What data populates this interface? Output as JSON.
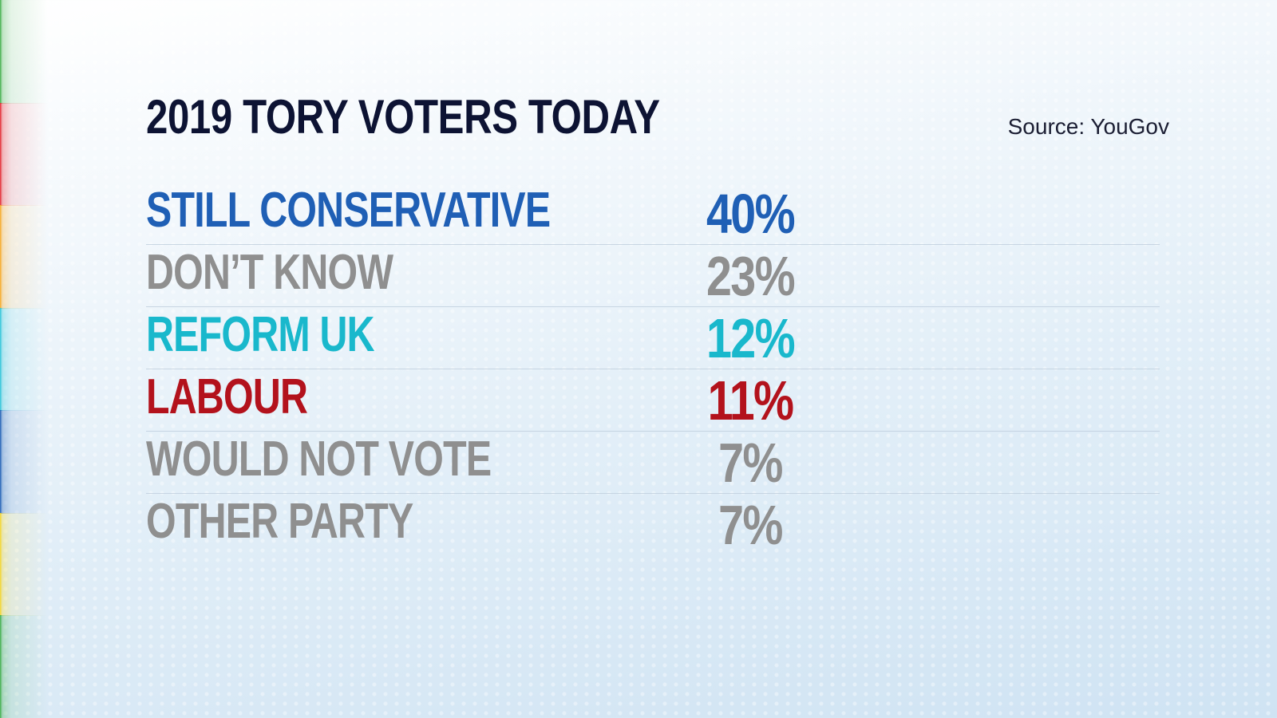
{
  "chart_data": {
    "type": "table",
    "title": "2019 TORY VOTERS TODAY",
    "source": "Source: YouGov",
    "rows": [
      {
        "label": "STILL CONSERVATIVE",
        "value": 40,
        "display": "40%",
        "color": "#1f5fb5"
      },
      {
        "label": "DON’T KNOW",
        "value": 23,
        "display": "23%",
        "color": "#8f8f8f"
      },
      {
        "label": "REFORM UK",
        "value": 12,
        "display": "12%",
        "color": "#19b8cc"
      },
      {
        "label": "LABOUR",
        "value": 11,
        "display": "11%",
        "color": "#b3121c"
      },
      {
        "label": "WOULD NOT VOTE",
        "value": 7,
        "display": "7%",
        "color": "#8f8f8f"
      },
      {
        "label": "OTHER PARTY",
        "value": 7,
        "display": "7%",
        "color": "#8f8f8f"
      }
    ]
  },
  "edge_colors": [
    "#3fae49",
    "#e3262e",
    "#f7a823",
    "#2cc4d8",
    "#1f5fb5",
    "#f5d52a",
    "#3fae49"
  ]
}
